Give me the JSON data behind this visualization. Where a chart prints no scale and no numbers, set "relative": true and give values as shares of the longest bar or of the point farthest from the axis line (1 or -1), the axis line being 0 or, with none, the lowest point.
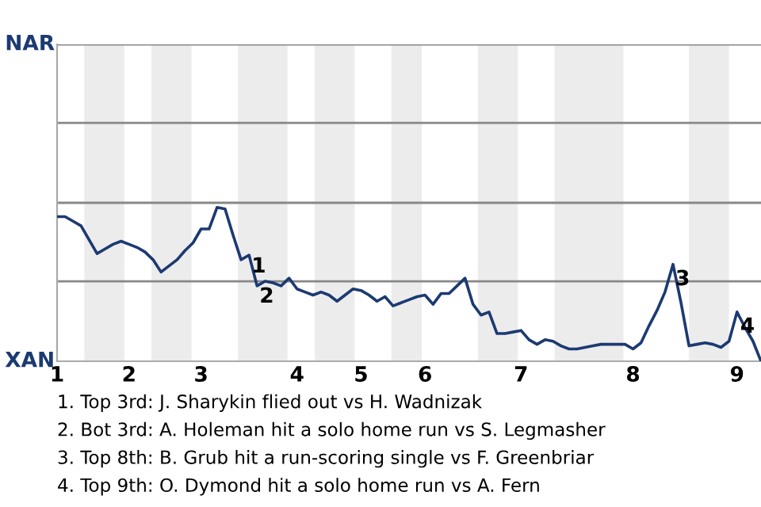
{
  "chart_data": {
    "type": "line",
    "relative": true,
    "categories": [
      "1",
      null,
      null,
      null,
      null,
      null,
      null,
      null,
      null,
      "2",
      null,
      null,
      null,
      null,
      null,
      null,
      null,
      null,
      "3",
      null,
      null,
      null,
      null,
      null,
      null,
      null,
      null,
      null,
      null,
      null,
      "4",
      null,
      null,
      null,
      null,
      null,
      null,
      null,
      "5",
      null,
      null,
      null,
      null,
      null,
      null,
      null,
      "6",
      null,
      null,
      null,
      null,
      null,
      null,
      null,
      null,
      null,
      null,
      null,
      "7",
      null,
      null,
      null,
      null,
      null,
      null,
      null,
      null,
      null,
      null,
      null,
      null,
      null,
      "8",
      null,
      null,
      null,
      null,
      null,
      null,
      null,
      null,
      null,
      null,
      null,
      null,
      "9",
      null,
      null,
      null
    ],
    "series": [
      {
        "color": "#1c3a72",
        "values": [
          0.94,
          0.94,
          0.91,
          0.88,
          0.79,
          0.7,
          0.73,
          0.76,
          0.78,
          0.76,
          0.74,
          0.71,
          0.66,
          0.58,
          0.62,
          0.66,
          0.72,
          0.77,
          0.86,
          0.86,
          1,
          0.99,
          0.82,
          0.66,
          0.69,
          0.49,
          0.52,
          0.51,
          0.49,
          0.54,
          0.47,
          0.45,
          0.43,
          0.45,
          0.43,
          0.39,
          0.43,
          0.47,
          0.46,
          0.43,
          0.39,
          0.42,
          0.36,
          0.38,
          0.4,
          0.42,
          0.43,
          0.37,
          0.44,
          0.44,
          0.49,
          0.54,
          0.37,
          0.3,
          0.32,
          0.18,
          0.18,
          0.19,
          0.2,
          0.14,
          0.11,
          0.14,
          0.13,
          0.1,
          0.08,
          0.08,
          0.09,
          0.1,
          0.11,
          0.11,
          0.11,
          0.11,
          0.08,
          0.12,
          0.23,
          0.33,
          0.45,
          0.63,
          0.38,
          0.1,
          0.11,
          0.12,
          0.11,
          0.09,
          0.13,
          0.32,
          0.22,
          0.13,
          0
        ]
      }
    ],
    "marker": "none",
    "line_style": "solid",
    "ref_lines": [
      {
        "axis": "y",
        "value": 0.52,
        "label": null,
        "color": "#888888"
      },
      {
        "axis": "y",
        "value": 1.03,
        "label": null,
        "color": "#888888"
      },
      {
        "axis": "y",
        "value": 1.55,
        "label": null,
        "color": "#888888"
      },
      {
        "axis": "y",
        "value": 2.06,
        "label": null,
        "color": "#888888"
      }
    ],
    "annotations": [
      "NAR",
      "XAN",
      "1",
      "2",
      "3",
      "4",
      "1. Top 3rd: J. Sharykin flied out vs H. Wadnizak",
      "2. Bot 3rd: A. Holeman hit a solo home run vs S. Legmasher",
      "3. Top 8th: B. Grub hit a run-scoring single vs F. Greenbriar",
      "4. Top 9th: O. Dymond hit a solo home run vs A. Fern"
    ]
  }
}
